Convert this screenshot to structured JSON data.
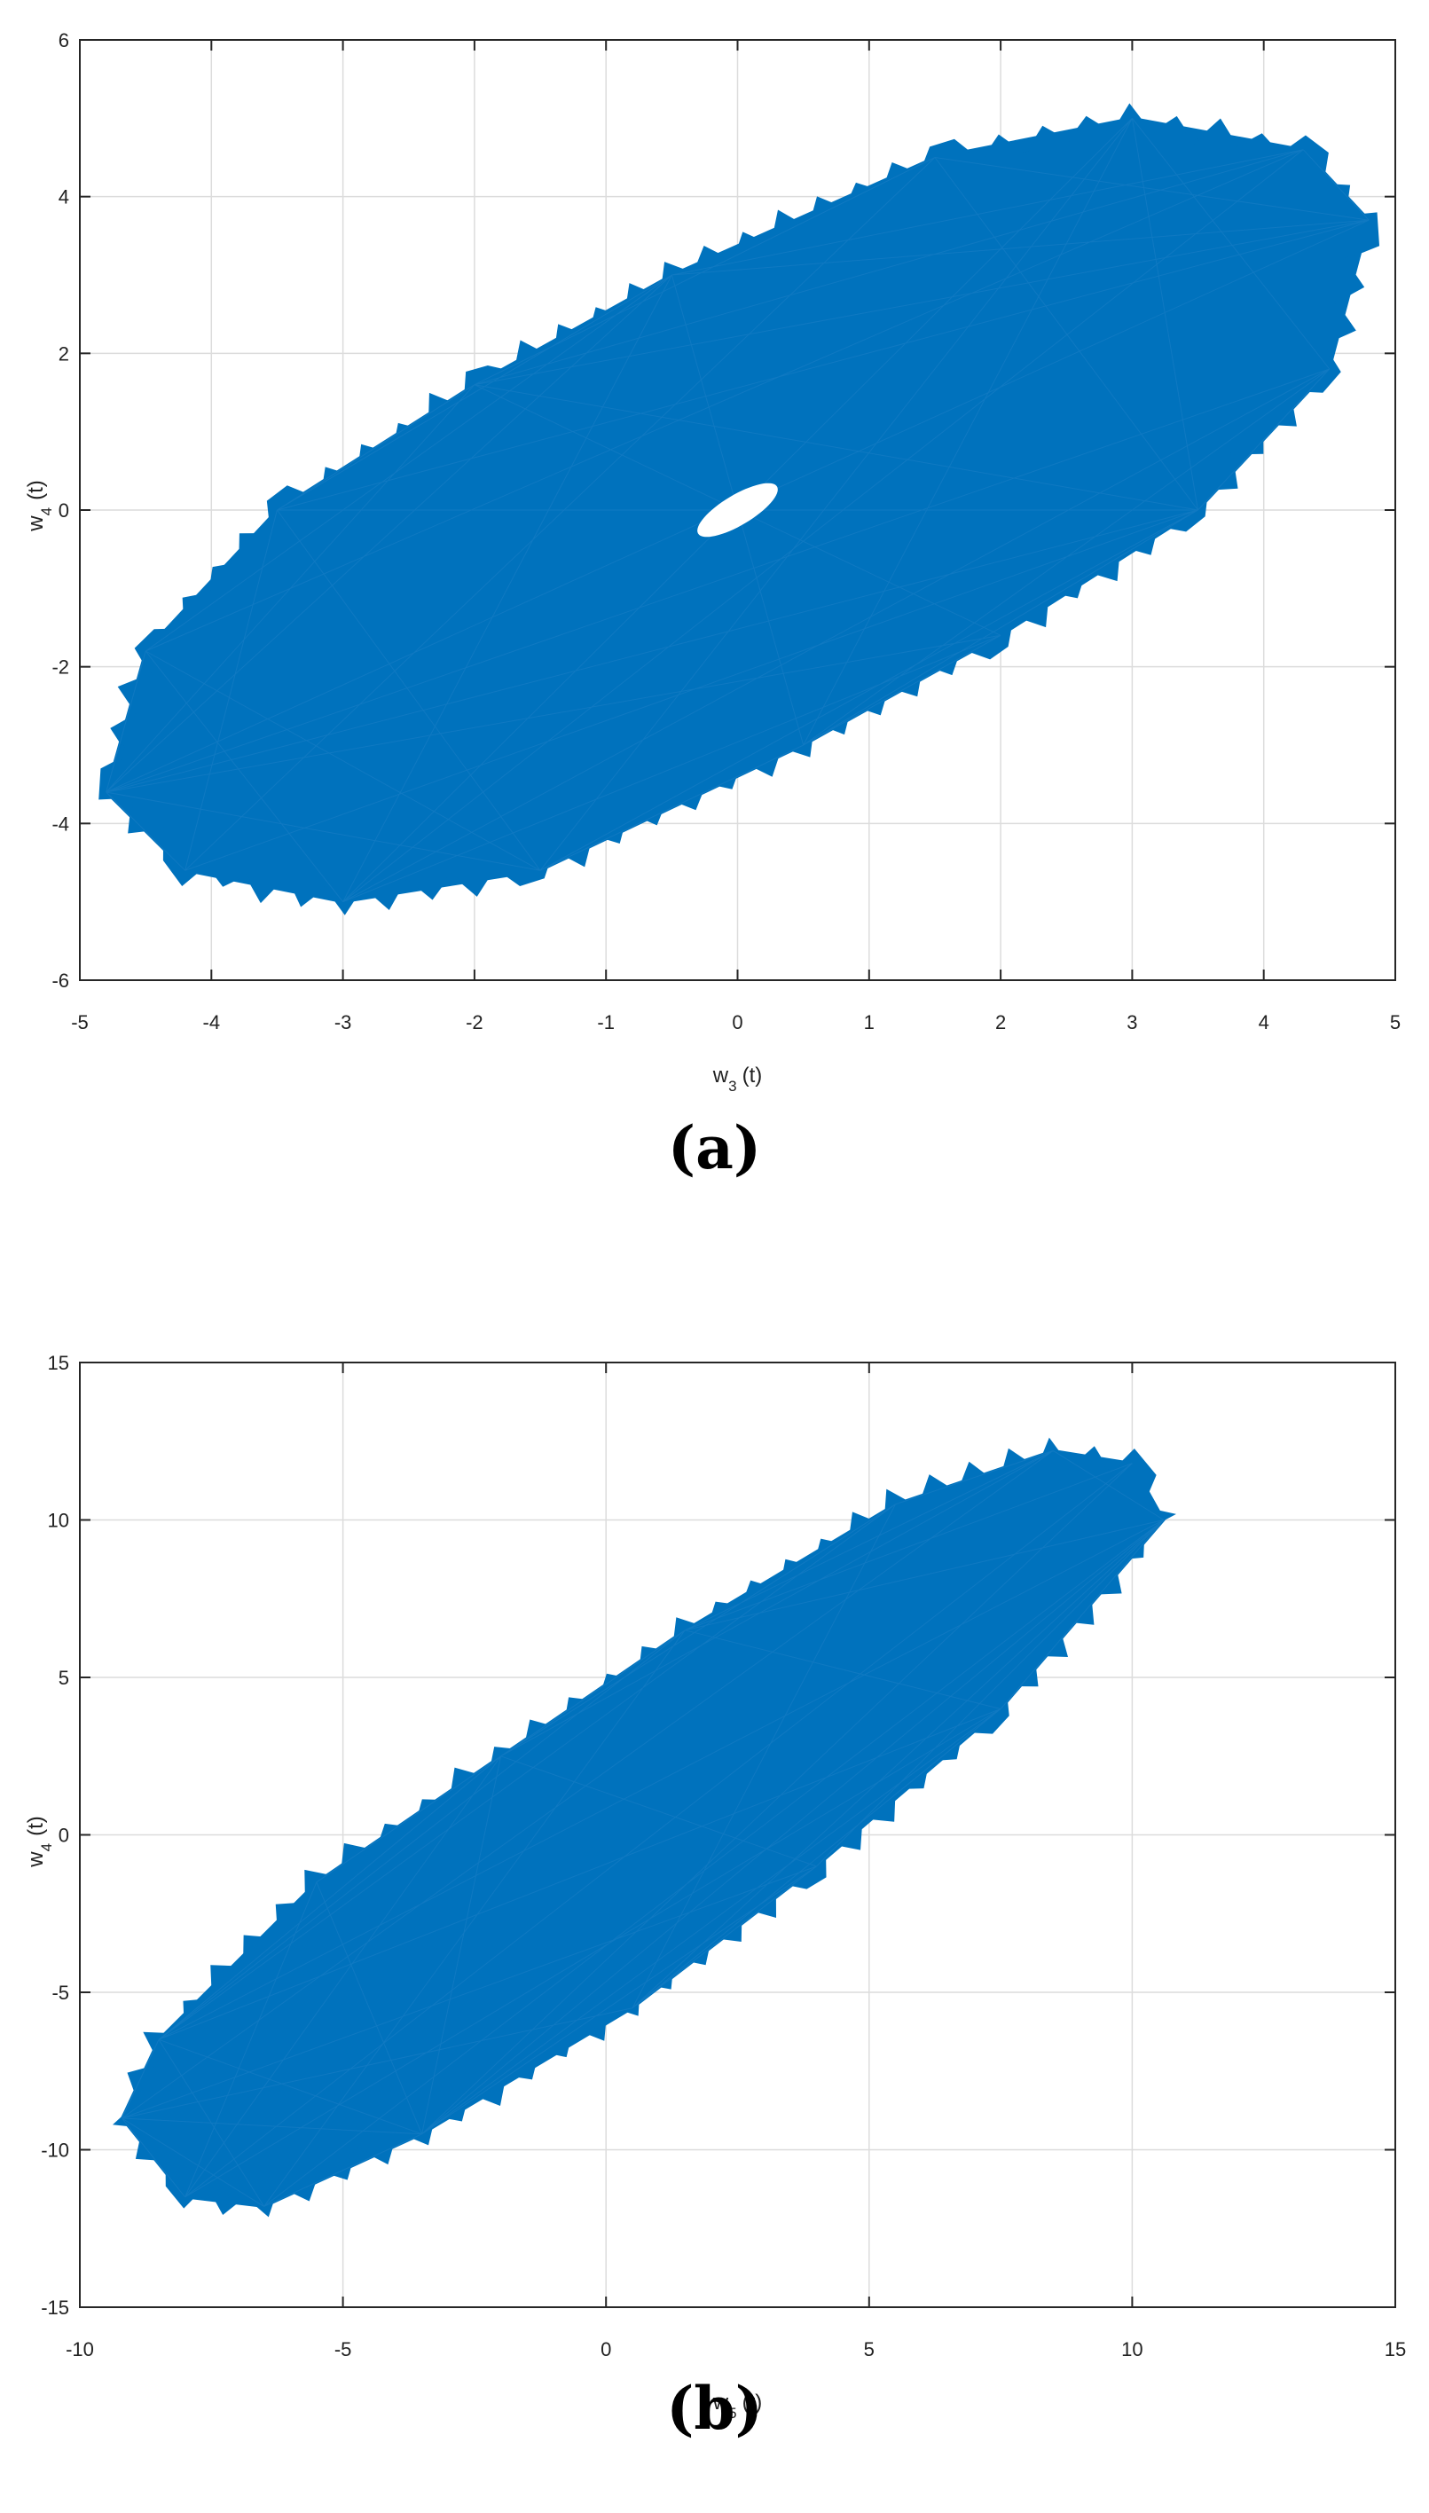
{
  "colors": {
    "series": "#0072BD",
    "grid": "#dcdcdc",
    "axis": "#262626"
  },
  "chart_data": [
    {
      "type": "line",
      "panel_label": "(a)",
      "xlabel": {
        "base": "w",
        "sub": "3",
        "rest": "(t)"
      },
      "ylabel": {
        "base": "w",
        "sub": "4",
        "rest": "(t)"
      },
      "xlim": [
        -5,
        5
      ],
      "ylim": [
        -6,
        6
      ],
      "xticks": [
        "-5",
        "-4",
        "-3",
        "-2",
        "-1",
        "0",
        "1",
        "2",
        "3",
        "4",
        "5"
      ],
      "yticks": [
        "-6",
        "-4",
        "-2",
        "0",
        "2",
        "4",
        "6"
      ],
      "grid": true,
      "series": [
        {
          "values": {
            "outer_envelope": [
              [
                -4.8,
                -3.6
              ],
              [
                -4.2,
                -4.6
              ],
              [
                -3.0,
                -5.0
              ],
              [
                -1.5,
                -4.6
              ],
              [
                0.5,
                -3.0
              ],
              [
                2.0,
                -1.6
              ],
              [
                3.5,
                0.0
              ],
              [
                4.5,
                1.8
              ],
              [
                4.8,
                3.7
              ],
              [
                4.3,
                4.6
              ],
              [
                3.0,
                5.0
              ],
              [
                1.5,
                4.5
              ],
              [
                -0.5,
                3.0
              ],
              [
                -2.0,
                1.6
              ],
              [
                -3.5,
                0.0
              ],
              [
                -4.5,
                -1.8
              ]
            ],
            "inner_hole": [
              [
                -0.3,
                -0.3
              ],
              [
                0.3,
                0.3
              ]
            ]
          }
        }
      ]
    },
    {
      "type": "line",
      "panel_label": "(b)",
      "xlabel": {
        "base": "w",
        "sub": "5",
        "rest": "(t)"
      },
      "ylabel": {
        "base": "w",
        "sub": "4",
        "rest": "(t)"
      },
      "xlim": [
        -10,
        15
      ],
      "ylim": [
        -15,
        15
      ],
      "xticks": [
        "-10",
        "-5",
        "0",
        "5",
        "10",
        "15"
      ],
      "yticks": [
        "-15",
        "-10",
        "-5",
        "0",
        "5",
        "10",
        "15"
      ],
      "grid": true,
      "series": [
        {
          "values": {
            "outer_envelope": [
              [
                -9.2,
                -9.0
              ],
              [
                -8.0,
                -11.5
              ],
              [
                -6.5,
                -11.8
              ],
              [
                -3.5,
                -9.5
              ],
              [
                0.5,
                -5.5
              ],
              [
                4.0,
                -1.0
              ],
              [
                7.5,
                4.0
              ],
              [
                10.6,
                10.0
              ],
              [
                10.0,
                11.8
              ],
              [
                8.5,
                12.2
              ],
              [
                5.5,
                10.5
              ],
              [
                1.5,
                6.5
              ],
              [
                -2.0,
                2.5
              ],
              [
                -5.5,
                -1.5
              ],
              [
                -8.5,
                -6.5
              ]
            ]
          }
        }
      ]
    }
  ]
}
